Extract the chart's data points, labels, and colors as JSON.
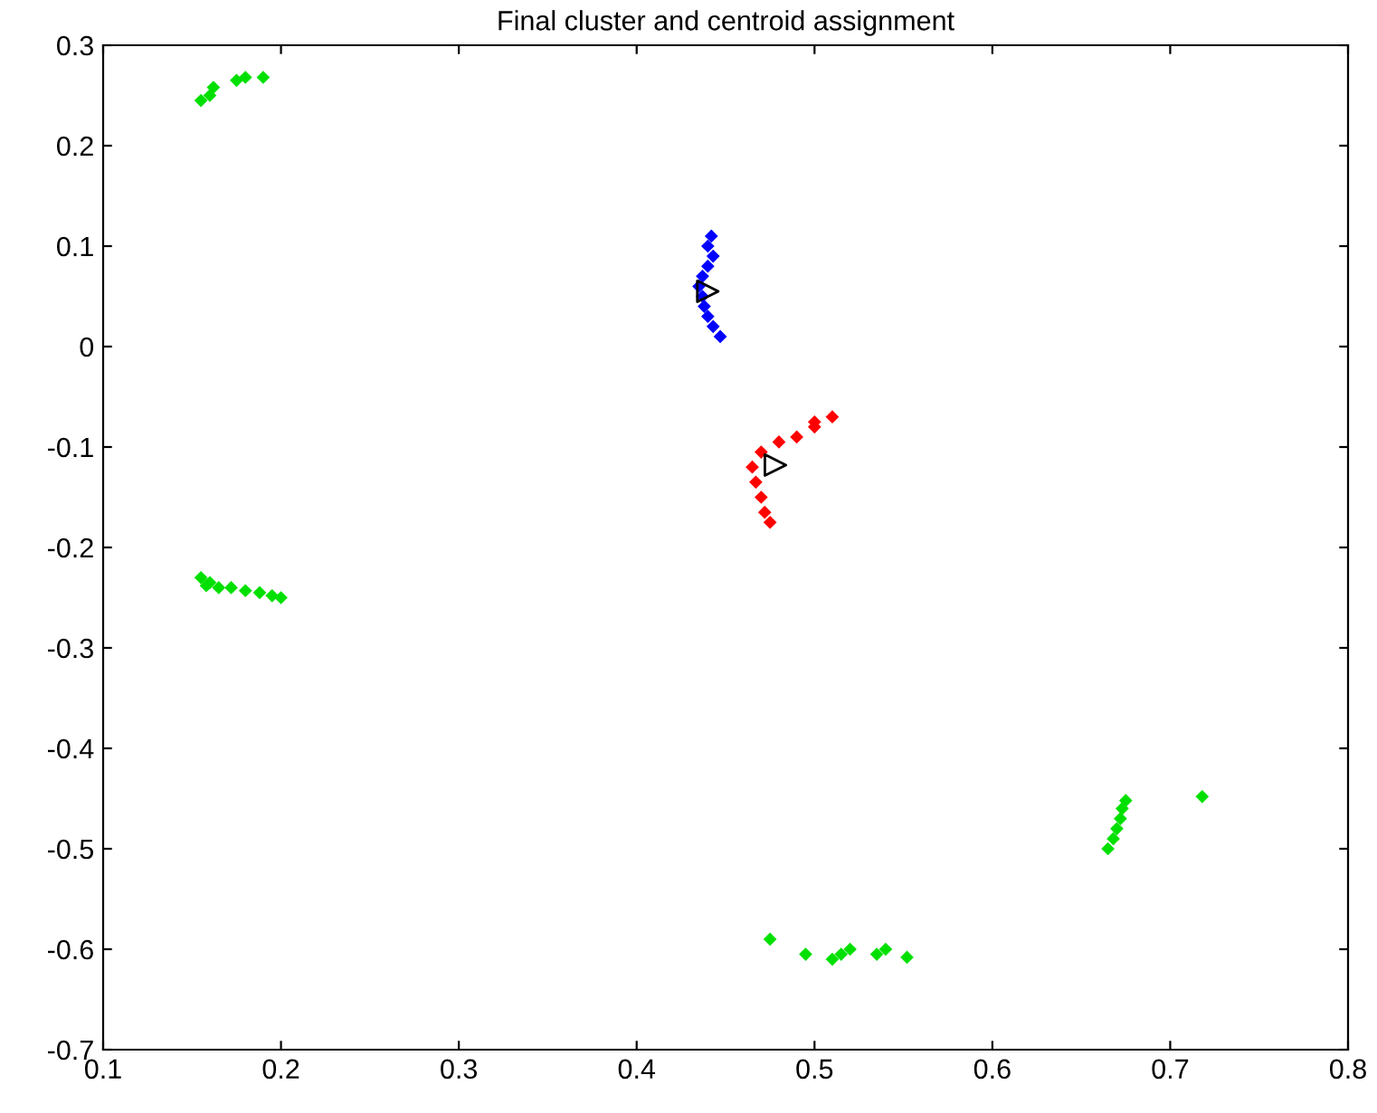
{
  "chart_data": {
    "type": "scatter",
    "title": "Final cluster and centroid assignment",
    "xlim": [
      0.1,
      0.8
    ],
    "xticks": [
      0.1,
      0.2,
      0.3,
      0.4,
      0.5,
      0.6,
      0.7,
      0.8
    ],
    "ylim": [
      -0.7,
      0.3
    ],
    "yticks": [
      -0.7,
      -0.6,
      -0.5,
      -0.4,
      -0.3,
      -0.2,
      -0.1,
      0,
      0.1,
      0.2,
      0.3
    ],
    "grid": false,
    "legend": false,
    "marker": "diamond",
    "series": [
      {
        "color": "#00e000",
        "x": [
          0.155,
          0.16,
          0.162,
          0.175,
          0.18,
          0.19,
          0.155,
          0.158,
          0.16,
          0.165,
          0.172,
          0.18,
          0.188,
          0.195,
          0.2,
          0.475,
          0.495,
          0.51,
          0.515,
          0.52,
          0.535,
          0.54,
          0.552,
          0.665,
          0.668,
          0.67,
          0.672,
          0.673,
          0.675,
          0.718
        ],
        "values": [
          0.245,
          0.25,
          0.258,
          0.265,
          0.268,
          0.268,
          -0.23,
          -0.238,
          -0.235,
          -0.24,
          -0.24,
          -0.243,
          -0.245,
          -0.248,
          -0.25,
          -0.59,
          -0.605,
          -0.61,
          -0.605,
          -0.6,
          -0.605,
          -0.6,
          -0.608,
          -0.5,
          -0.49,
          -0.48,
          -0.47,
          -0.46,
          -0.452,
          -0.448
        ]
      },
      {
        "color": "#0000ff",
        "x": [
          0.442,
          0.44,
          0.443,
          0.44,
          0.437,
          0.435,
          0.437,
          0.438,
          0.44,
          0.443,
          0.447
        ],
        "values": [
          0.11,
          0.1,
          0.09,
          0.08,
          0.07,
          0.06,
          0.05,
          0.04,
          0.03,
          0.02,
          0.01
        ]
      },
      {
        "color": "#ff0000",
        "x": [
          0.51,
          0.5,
          0.49,
          0.48,
          0.47,
          0.465,
          0.467,
          0.47,
          0.472,
          0.475,
          0.5
        ],
        "values": [
          -0.07,
          -0.075,
          -0.09,
          -0.095,
          -0.105,
          -0.12,
          -0.135,
          -0.15,
          -0.165,
          -0.175,
          -0.08
        ]
      },
      {
        "color": "#000000",
        "marker": "triangle",
        "x": [
          0.44,
          0.478
        ],
        "values": [
          0.055,
          -0.118
        ]
      }
    ]
  }
}
